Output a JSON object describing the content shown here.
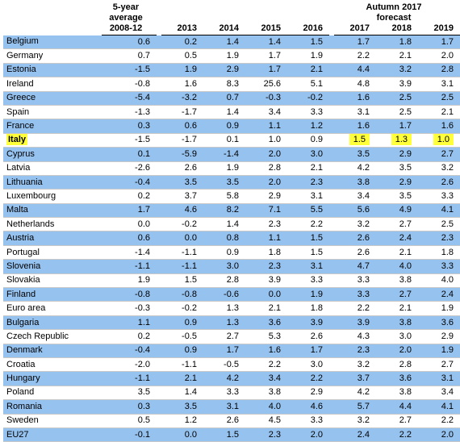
{
  "table": {
    "headers": {
      "avg_line1": "5-year",
      "avg_line2": "average",
      "avg_period": "2008-12",
      "forecast_line1": "Autumn 2017",
      "forecast_line2": "forecast",
      "years": [
        "2013",
        "2014",
        "2015",
        "2016",
        "2017",
        "2018",
        "2019"
      ]
    },
    "rows": [
      {
        "country": "Belgium",
        "avg": "0.6",
        "v": [
          "0.2",
          "1.4",
          "1.4",
          "1.5",
          "1.7",
          "1.8",
          "1.7"
        ]
      },
      {
        "country": "Germany",
        "avg": "0.7",
        "v": [
          "0.5",
          "1.9",
          "1.7",
          "1.9",
          "2.2",
          "2.1",
          "2.0"
        ]
      },
      {
        "country": "Estonia",
        "avg": "-1.5",
        "v": [
          "1.9",
          "2.9",
          "1.7",
          "2.1",
          "4.4",
          "3.2",
          "2.8"
        ]
      },
      {
        "country": "Ireland",
        "avg": "-0.8",
        "v": [
          "1.6",
          "8.3",
          "25.6",
          "5.1",
          "4.8",
          "3.9",
          "3.1"
        ]
      },
      {
        "country": "Greece",
        "avg": "-5.4",
        "v": [
          "-3.2",
          "0.7",
          "-0.3",
          "-0.2",
          "1.6",
          "2.5",
          "2.5"
        ]
      },
      {
        "country": "Spain",
        "avg": "-1.3",
        "v": [
          "-1.7",
          "1.4",
          "3.4",
          "3.3",
          "3.1",
          "2.5",
          "2.1"
        ]
      },
      {
        "country": "France",
        "avg": "0.3",
        "v": [
          "0.6",
          "0.9",
          "1.1",
          "1.2",
          "1.6",
          "1.7",
          "1.6"
        ]
      },
      {
        "country": "Italy",
        "avg": "-1.5",
        "v": [
          "-1.7",
          "0.1",
          "1.0",
          "0.9",
          "1.5",
          "1.3",
          "1.0"
        ]
      },
      {
        "country": "Cyprus",
        "avg": "0.1",
        "v": [
          "-5.9",
          "-1.4",
          "2.0",
          "3.0",
          "3.5",
          "2.9",
          "2.7"
        ]
      },
      {
        "country": "Latvia",
        "avg": "-2.6",
        "v": [
          "2.6",
          "1.9",
          "2.8",
          "2.1",
          "4.2",
          "3.5",
          "3.2"
        ]
      },
      {
        "country": "Lithuania",
        "avg": "-0.4",
        "v": [
          "3.5",
          "3.5",
          "2.0",
          "2.3",
          "3.8",
          "2.9",
          "2.6"
        ]
      },
      {
        "country": "Luxembourg",
        "avg": "0.2",
        "v": [
          "3.7",
          "5.8",
          "2.9",
          "3.1",
          "3.4",
          "3.5",
          "3.3"
        ]
      },
      {
        "country": "Malta",
        "avg": "1.7",
        "v": [
          "4.6",
          "8.2",
          "7.1",
          "5.5",
          "5.6",
          "4.9",
          "4.1"
        ]
      },
      {
        "country": "Netherlands",
        "avg": "0.0",
        "v": [
          "-0.2",
          "1.4",
          "2.3",
          "2.2",
          "3.2",
          "2.7",
          "2.5"
        ]
      },
      {
        "country": "Austria",
        "avg": "0.6",
        "v": [
          "0.0",
          "0.8",
          "1.1",
          "1.5",
          "2.6",
          "2.4",
          "2.3"
        ]
      },
      {
        "country": "Portugal",
        "avg": "-1.4",
        "v": [
          "-1.1",
          "0.9",
          "1.8",
          "1.5",
          "2.6",
          "2.1",
          "1.8"
        ]
      },
      {
        "country": "Slovenia",
        "avg": "-1.1",
        "v": [
          "-1.1",
          "3.0",
          "2.3",
          "3.1",
          "4.7",
          "4.0",
          "3.3"
        ]
      },
      {
        "country": "Slovakia",
        "avg": "1.9",
        "v": [
          "1.5",
          "2.8",
          "3.9",
          "3.3",
          "3.3",
          "3.8",
          "4.0"
        ]
      },
      {
        "country": "Finland",
        "avg": "-0.8",
        "v": [
          "-0.8",
          "-0.6",
          "0.0",
          "1.9",
          "3.3",
          "2.7",
          "2.4"
        ]
      },
      {
        "country": "Euro area",
        "avg": "-0.3",
        "v": [
          "-0.2",
          "1.3",
          "2.1",
          "1.8",
          "2.2",
          "2.1",
          "1.9"
        ]
      },
      {
        "country": "Bulgaria",
        "avg": "1.1",
        "v": [
          "0.9",
          "1.3",
          "3.6",
          "3.9",
          "3.9",
          "3.8",
          "3.6"
        ]
      },
      {
        "country": "Czech Republic",
        "avg": "0.2",
        "v": [
          "-0.5",
          "2.7",
          "5.3",
          "2.6",
          "4.3",
          "3.0",
          "2.9"
        ]
      },
      {
        "country": "Denmark",
        "avg": "-0.4",
        "v": [
          "0.9",
          "1.7",
          "1.6",
          "1.7",
          "2.3",
          "2.0",
          "1.9"
        ]
      },
      {
        "country": "Croatia",
        "avg": "-2.0",
        "v": [
          "-1.1",
          "-0.5",
          "2.2",
          "3.0",
          "3.2",
          "2.8",
          "2.7"
        ]
      },
      {
        "country": "Hungary",
        "avg": "-1.1",
        "v": [
          "2.1",
          "4.2",
          "3.4",
          "2.2",
          "3.7",
          "3.6",
          "3.1"
        ]
      },
      {
        "country": "Poland",
        "avg": "3.5",
        "v": [
          "1.4",
          "3.3",
          "3.8",
          "2.9",
          "4.2",
          "3.8",
          "3.4"
        ]
      },
      {
        "country": "Romania",
        "avg": "0.3",
        "v": [
          "3.5",
          "3.1",
          "4.0",
          "4.6",
          "5.7",
          "4.4",
          "4.1"
        ]
      },
      {
        "country": "Sweden",
        "avg": "0.5",
        "v": [
          "1.2",
          "2.6",
          "4.5",
          "3.3",
          "3.2",
          "2.7",
          "2.2"
        ]
      },
      {
        "country": "EU27",
        "avg": "-0.1",
        "v": [
          "0.0",
          "1.5",
          "2.3",
          "2.0",
          "2.4",
          "2.2",
          "2.0"
        ]
      }
    ],
    "colors": {
      "row_shade": "#96c2f0",
      "highlight": "#ffff3a"
    }
  }
}
